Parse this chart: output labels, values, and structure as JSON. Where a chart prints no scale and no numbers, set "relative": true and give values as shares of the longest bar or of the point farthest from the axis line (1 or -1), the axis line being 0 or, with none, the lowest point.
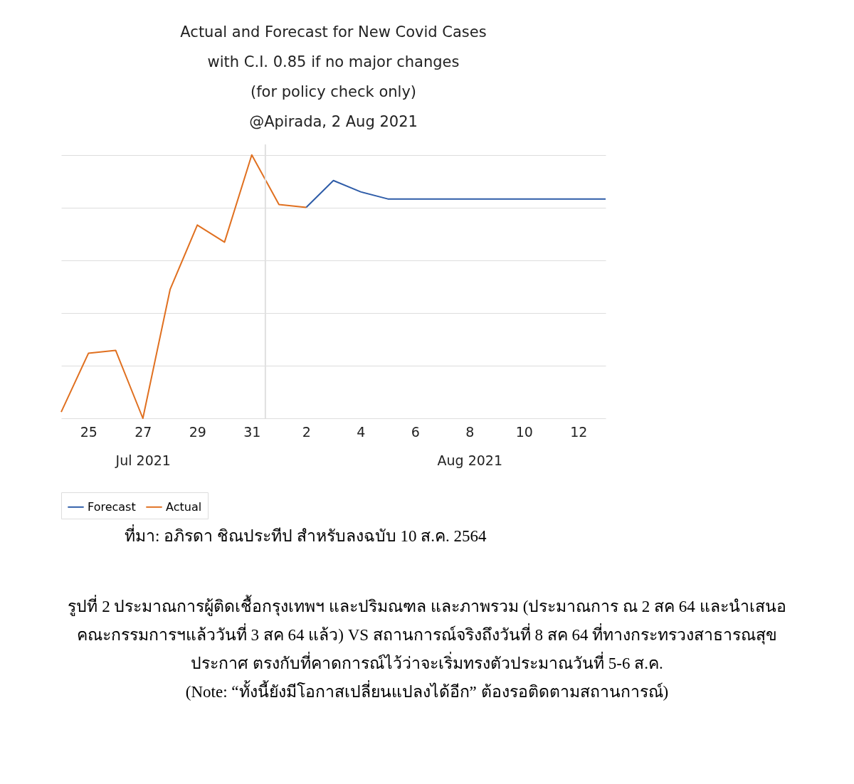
{
  "chart_data": {
    "type": "line",
    "title": "Actual and Forecast for New Covid Cases\nwith C.I. 0.85 if no major changes\n(for policy check only)\n@Apirada,  2 Aug 2021",
    "relative": true,
    "grid": "y",
    "legend": "bottom",
    "xlim": [
      "2021-07-24",
      "2021-08-13"
    ],
    "xticks": [
      {
        "value": "2021-07-25",
        "label": "25"
      },
      {
        "value": "2021-07-27",
        "label": "27\nJul 2021"
      },
      {
        "value": "2021-07-29",
        "label": "29"
      },
      {
        "value": "2021-07-31",
        "label": "31"
      },
      {
        "value": "2021-08-02",
        "label": "2"
      },
      {
        "value": "2021-08-04",
        "label": "4"
      },
      {
        "value": "2021-08-06",
        "label": "6"
      },
      {
        "value": "2021-08-08",
        "label": "8\nAug 2021"
      },
      {
        "value": "2021-08-10",
        "label": "10"
      },
      {
        "value": "2021-08-12",
        "label": "12"
      }
    ],
    "series": [
      {
        "name": "Forecast",
        "color": "#2e5ca8",
        "x": [
          "2021-08-02",
          "2021-08-03",
          "2021-08-04",
          "2021-08-05",
          "2021-08-13"
        ],
        "values": [
          0.801,
          0.903,
          0.86,
          0.833,
          0.833
        ]
      },
      {
        "name": "Actual",
        "color": "#e07020",
        "x": [
          "2021-07-24",
          "2021-07-25",
          "2021-07-26",
          "2021-07-27",
          "2021-07-28",
          "2021-07-29",
          "2021-07-30",
          "2021-07-31",
          "2021-08-01",
          "2021-08-02"
        ],
        "values": [
          0.024,
          0.247,
          0.258,
          0,
          0.489,
          0.734,
          0.669,
          1,
          0.812,
          0.801
        ]
      }
    ],
    "ref_lines": [
      {
        "axis": "x",
        "value": "2021-07-31T12:00",
        "color": "#e0e0e0"
      }
    ],
    "annotations": [
      "ที่มา: อภิรดา ชิณประทีป สำหรับลงฉบับ 10 ส.ค. 2564",
      "รูปที่ 2  ประมาณการผู้ติดเชื้อกรุงเทพฯ และปริมณฑล และภาพรวม (ประมาณการ ณ 2 สค 64 และนำเสนอ",
      "คณะกรรมการฯแล้ววันที่ 3 สค 64 แล้ว)  VS สถานการณ์จริงถึงวันที่ 8 สค 64 ที่ทางกระทรวงสาธารณสุข",
      "ประกาศ  ตรงกับที่คาดการณ์ไว้ว่าจะเริ่มทรงตัวประมาณวันที่ 5-6 ส.ค.",
      "(Note: “ทั้งนี้ยังมีโอกาสเปลี่ยนแปลงได้อีก” ต้องรอติดตามสถานการณ์)"
    ]
  }
}
